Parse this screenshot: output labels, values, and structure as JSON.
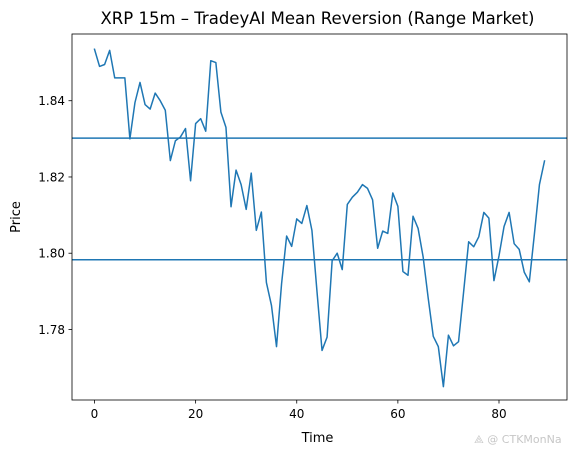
{
  "chart_data": {
    "type": "line",
    "title": "XRP 15m – TradeyAI Mean Reversion (Range Market)",
    "xlabel": "Time",
    "ylabel": "Price",
    "xlim": [
      -4.45,
      93.45
    ],
    "ylim": [
      1.7615,
      1.8575
    ],
    "xticks": [
      0,
      20,
      40,
      60,
      80
    ],
    "yticks": [
      1.78,
      1.8,
      1.82,
      1.84
    ],
    "ytick_labels": [
      "1.78",
      "1.80",
      "1.82",
      "1.84"
    ],
    "grid": false,
    "series": [
      {
        "color": "#1f77b4",
        "x": [
          0,
          1,
          2,
          3,
          4,
          5,
          6,
          7,
          8,
          9,
          10,
          11,
          12,
          13,
          14,
          15,
          16,
          17,
          18,
          19,
          20,
          21,
          22,
          23,
          24,
          25,
          26,
          27,
          28,
          29,
          30,
          31,
          32,
          33,
          34,
          35,
          36,
          37,
          38,
          39,
          40,
          41,
          42,
          43,
          44,
          45,
          46,
          47,
          48,
          49,
          50,
          51,
          52,
          53,
          54,
          55,
          56,
          57,
          58,
          59,
          60,
          61,
          62,
          63,
          64,
          65,
          66,
          67,
          68,
          69,
          70,
          71,
          72,
          73,
          74,
          75,
          76,
          77,
          78,
          79,
          80,
          81,
          82,
          83,
          84,
          85,
          86,
          87,
          88,
          89
        ],
        "values": [
          1.8535,
          1.849,
          1.8495,
          1.8532,
          1.846,
          1.846,
          1.846,
          1.83,
          1.8395,
          1.8448,
          1.839,
          1.8378,
          1.842,
          1.84,
          1.8375,
          1.8243,
          1.8295,
          1.8305,
          1.8327,
          1.819,
          1.834,
          1.8353,
          1.832,
          1.8505,
          1.85,
          1.837,
          1.833,
          1.8122,
          1.8218,
          1.818,
          1.8115,
          1.821,
          1.806,
          1.8108,
          1.7923,
          1.7863,
          1.7755,
          1.792,
          1.8045,
          1.8018,
          1.809,
          1.8078,
          1.8125,
          1.806,
          1.79,
          1.7745,
          1.778,
          1.798,
          1.8,
          1.7957,
          1.8128,
          1.8147,
          1.816,
          1.818,
          1.817,
          1.814,
          1.8013,
          1.8058,
          1.8052,
          1.8158,
          1.8123,
          1.7952,
          1.7942,
          1.8097,
          1.8065,
          1.799,
          1.7882,
          1.7782,
          1.7755,
          1.765,
          1.7785,
          1.7757,
          1.7768,
          1.7898,
          1.803,
          1.8017,
          1.8043,
          1.8107,
          1.8092,
          1.7928,
          1.7993,
          1.807,
          1.8107,
          1.8025,
          1.801,
          1.795,
          1.7925,
          1.805,
          1.818,
          1.8242
        ]
      }
    ],
    "hlines": [
      {
        "y": 1.8302,
        "color": "#1f77b4"
      },
      {
        "y": 1.7983,
        "color": "#1f77b4"
      }
    ]
  },
  "watermark": {
    "text": "⟁ @ CTKMonNa"
  }
}
